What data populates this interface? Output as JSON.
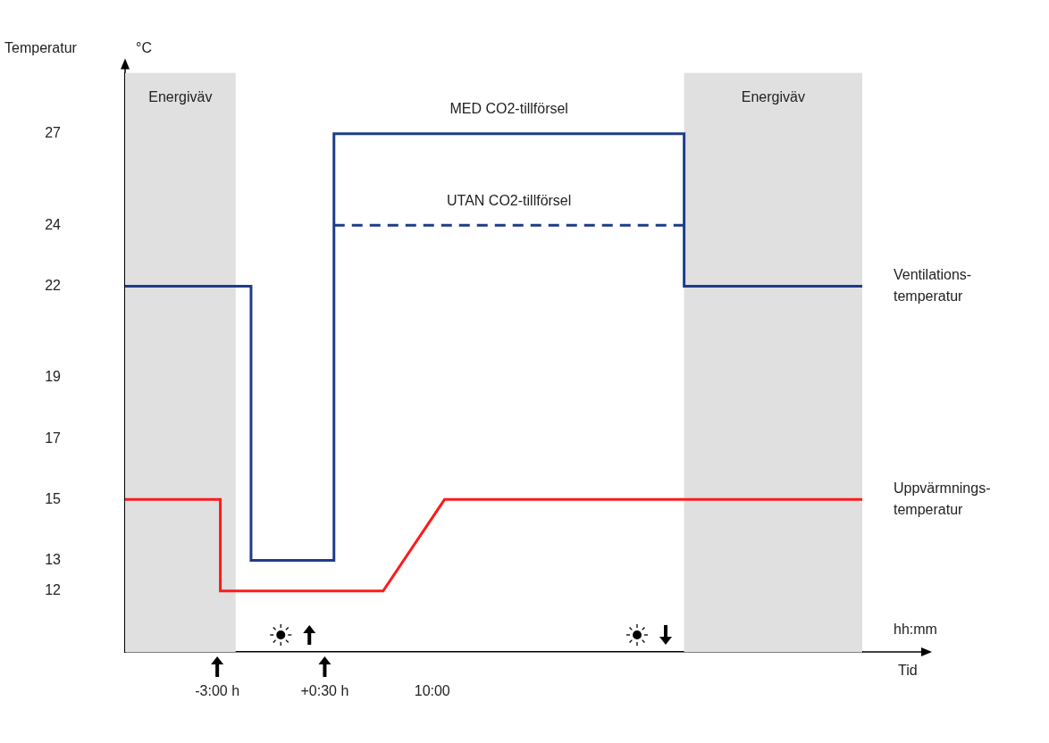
{
  "chart_data": {
    "type": "line",
    "xlabel": "Tid",
    "xunit": "hh:mm",
    "ylabel": "Temperatur",
    "yunit": "°C",
    "xlim": [
      0,
      24
    ],
    "xticks": [
      {
        "value": 3,
        "label": "-3:00 h"
      },
      {
        "value": 6.5,
        "label": "+0:30 h"
      },
      {
        "value": 10,
        "label": "10:00"
      }
    ],
    "ylim": [
      10,
      29
    ],
    "yticks": [
      12,
      13,
      15,
      17,
      19,
      22,
      24,
      27
    ],
    "grid": false,
    "series": [
      {
        "name": "Ventilations-\ntemperatur",
        "color": "#1f3c88",
        "line_style": "solid",
        "x": [
          0,
          4.1,
          4.1,
          6.8,
          6.8,
          18.2,
          18.2,
          24
        ],
        "values": [
          22,
          22,
          13,
          13,
          27,
          27,
          22,
          22
        ]
      },
      {
        "name": "UTAN CO2-tillförsel",
        "color": "#1f3c88",
        "line_style": "dashed",
        "x": [
          6.8,
          18.2
        ],
        "values": [
          24,
          24
        ]
      },
      {
        "name": "Uppvärmnings-\ntemperatur",
        "color": "#ff1a1a",
        "line_style": "solid",
        "x": [
          0,
          3.1,
          3.1,
          8.4,
          10.4,
          24
        ],
        "values": [
          15,
          15,
          12,
          12,
          15,
          15
        ]
      }
    ],
    "annotations": [
      {
        "text": "MED CO2-tillförsel",
        "x": 12.5,
        "y": 27
      }
    ],
    "shaded_regions": [
      {
        "label": "Energiväv",
        "x": [
          0,
          3.6
        ]
      },
      {
        "label": "Energiväv",
        "x": [
          18.2,
          24
        ]
      }
    ],
    "sun_events": [
      {
        "x": 6,
        "direction": "up"
      },
      {
        "x": 17.6,
        "direction": "down"
      }
    ]
  }
}
